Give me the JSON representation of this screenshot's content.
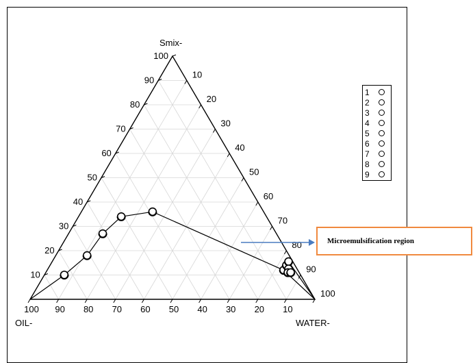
{
  "chart_data": {
    "type": "ternary",
    "axes": {
      "top": "Smix-",
      "left": "OIL-",
      "right": "WATER-"
    },
    "ticks": {
      "smix": [
        "10",
        "20",
        "30",
        "40",
        "50",
        "60",
        "70",
        "80",
        "90",
        "100"
      ],
      "water": [
        "10",
        "20",
        "30",
        "40",
        "50",
        "60",
        "70",
        "80",
        "90",
        "100"
      ],
      "oil": [
        "100",
        "90",
        "80",
        "70",
        "60",
        "50",
        "40",
        "30",
        "20",
        "10"
      ]
    },
    "grid": true,
    "boundary_points": [
      {
        "smix": 10,
        "water": 7,
        "oil": 83
      },
      {
        "smix": 18,
        "water": 11,
        "oil": 71
      },
      {
        "smix": 27,
        "water": 12,
        "oil": 61
      },
      {
        "smix": 34,
        "water": 15,
        "oil": 51
      },
      {
        "smix": 36,
        "water": 25,
        "oil": 39
      },
      {
        "smix": 12,
        "water": 83,
        "oil": 5
      },
      {
        "smix": 14,
        "water": 83,
        "oil": 3
      },
      {
        "smix": 15.5,
        "water": 83,
        "oil": 1.5
      },
      {
        "smix": 12.5,
        "water": 84.5,
        "oil": 3
      },
      {
        "smix": 11,
        "water": 85,
        "oil": 4
      },
      {
        "smix": 11,
        "water": 86,
        "oil": 3
      }
    ],
    "line_paths": [
      [
        {
          "smix": 0,
          "water": 0,
          "oil": 100
        },
        {
          "smix": 10,
          "water": 7,
          "oil": 83
        },
        {
          "smix": 18,
          "water": 11,
          "oil": 71
        },
        {
          "smix": 27,
          "water": 12,
          "oil": 61
        },
        {
          "smix": 34,
          "water": 15,
          "oil": 51
        },
        {
          "smix": 36,
          "water": 25,
          "oil": 39
        },
        {
          "smix": 12,
          "water": 83,
          "oil": 5
        },
        {
          "smix": 0,
          "water": 100,
          "oil": 0
        }
      ],
      [
        {
          "smix": 15.5,
          "water": 83,
          "oil": 1.5
        },
        {
          "smix": 0,
          "water": 100,
          "oil": 0
        }
      ]
    ],
    "legend": {
      "placement": "right",
      "entries": [
        "1",
        "2",
        "3",
        "4",
        "5",
        "6",
        "7",
        "8",
        "9"
      ]
    },
    "annotation": {
      "text": "Microemulsification region",
      "color": "#f0893e",
      "arrow_color": "#4a7cc0"
    }
  }
}
